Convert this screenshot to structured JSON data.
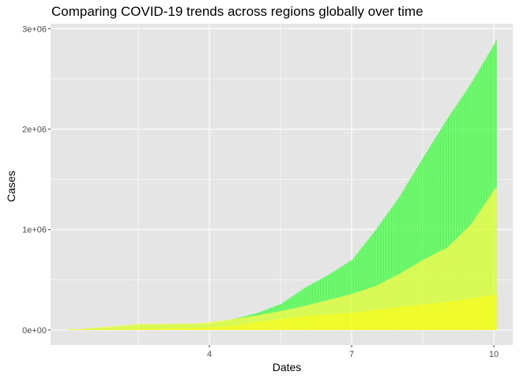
{
  "chart_data": {
    "type": "bar",
    "title": "Comparing COVID-19 trends across regions globally over time",
    "xlabel": "Dates",
    "ylabel": "Cases",
    "x_ticks": [
      4,
      7,
      10
    ],
    "x_tick_labels": [
      "4",
      "7",
      "10"
    ],
    "xlim": [
      0.65,
      10.4
    ],
    "y_ticks": [
      0,
      1000000,
      2000000,
      3000000
    ],
    "y_tick_labels": [
      "0e+00",
      "1e+06",
      "2e+06",
      "3e+06"
    ],
    "ylim": [
      -150000,
      3050000
    ],
    "grid": true,
    "legend": "none",
    "panel_color": "#e5e5e5",
    "grid_color": "#ffffff",
    "series": [
      {
        "color": "#33ff33",
        "points": [
          {
            "x": 1.0,
            "y": 0
          },
          {
            "x": 2.0,
            "y": 30000
          },
          {
            "x": 2.5,
            "y": 55000
          },
          {
            "x": 3.0,
            "y": 55000
          },
          {
            "x": 3.7,
            "y": 60000
          },
          {
            "x": 4.0,
            "y": 65000
          },
          {
            "x": 4.5,
            "y": 110000
          },
          {
            "x": 5.0,
            "y": 170000
          },
          {
            "x": 5.5,
            "y": 260000
          },
          {
            "x": 6.0,
            "y": 420000
          },
          {
            "x": 6.5,
            "y": 550000
          },
          {
            "x": 7.0,
            "y": 700000
          },
          {
            "x": 7.5,
            "y": 1000000
          },
          {
            "x": 8.0,
            "y": 1330000
          },
          {
            "x": 8.5,
            "y": 1720000
          },
          {
            "x": 9.0,
            "y": 2100000
          },
          {
            "x": 9.5,
            "y": 2450000
          },
          {
            "x": 10.0,
            "y": 2850000
          },
          {
            "x": 10.05,
            "y": 2900000
          }
        ]
      },
      {
        "color": "#ffff33",
        "points": [
          {
            "x": 1.0,
            "y": 0
          },
          {
            "x": 2.0,
            "y": 40000
          },
          {
            "x": 2.5,
            "y": 60000
          },
          {
            "x": 3.0,
            "y": 62000
          },
          {
            "x": 3.7,
            "y": 65000
          },
          {
            "x": 4.0,
            "y": 80000
          },
          {
            "x": 4.5,
            "y": 110000
          },
          {
            "x": 5.0,
            "y": 145000
          },
          {
            "x": 5.5,
            "y": 190000
          },
          {
            "x": 6.0,
            "y": 240000
          },
          {
            "x": 6.5,
            "y": 300000
          },
          {
            "x": 7.0,
            "y": 360000
          },
          {
            "x": 7.5,
            "y": 440000
          },
          {
            "x": 8.0,
            "y": 560000
          },
          {
            "x": 8.5,
            "y": 700000
          },
          {
            "x": 9.0,
            "y": 820000
          },
          {
            "x": 9.5,
            "y": 1050000
          },
          {
            "x": 10.0,
            "y": 1400000
          },
          {
            "x": 10.05,
            "y": 1430000
          }
        ]
      },
      {
        "color": "#ffff00",
        "points": [
          {
            "x": 1.0,
            "y": 0
          },
          {
            "x": 3.7,
            "y": 20000
          },
          {
            "x": 4.5,
            "y": 40000
          },
          {
            "x": 5.0,
            "y": 80000
          },
          {
            "x": 5.5,
            "y": 110000
          },
          {
            "x": 6.0,
            "y": 140000
          },
          {
            "x": 7.0,
            "y": 170000
          },
          {
            "x": 8.0,
            "y": 230000
          },
          {
            "x": 9.0,
            "y": 280000
          },
          {
            "x": 10.0,
            "y": 350000
          },
          {
            "x": 10.05,
            "y": 360000
          }
        ]
      }
    ]
  }
}
